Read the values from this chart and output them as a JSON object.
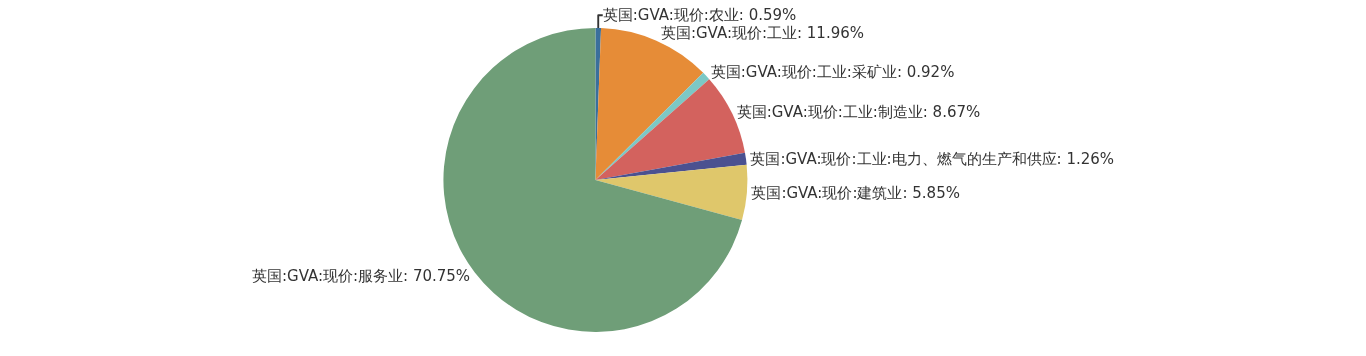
{
  "chart_data": {
    "type": "pie",
    "categories": [
      "英国:GVA:现价:农业",
      "英国:GVA:现价:工业",
      "英国:GVA:现价:工业:采矿业",
      "英国:GVA:现价:工业:制造业",
      "英国:GVA:现价:工业:电力、燃气的生产和供应",
      "英国:GVA:现价:建筑业",
      "英国:GVA:现价:服务业"
    ],
    "values": [
      0.59,
      11.96,
      0.92,
      8.67,
      1.26,
      5.85,
      70.75
    ],
    "value_labels": [
      "0.59%",
      "11.96%",
      "0.92%",
      "8.67%",
      "1.26%",
      "5.85%",
      "70.75%"
    ],
    "colors": [
      "#3a6f9c",
      "#e68c37",
      "#7cc8c5",
      "#d3625e",
      "#4b5190",
      "#dfc76b",
      "#6f9e78"
    ],
    "legend": false
  }
}
